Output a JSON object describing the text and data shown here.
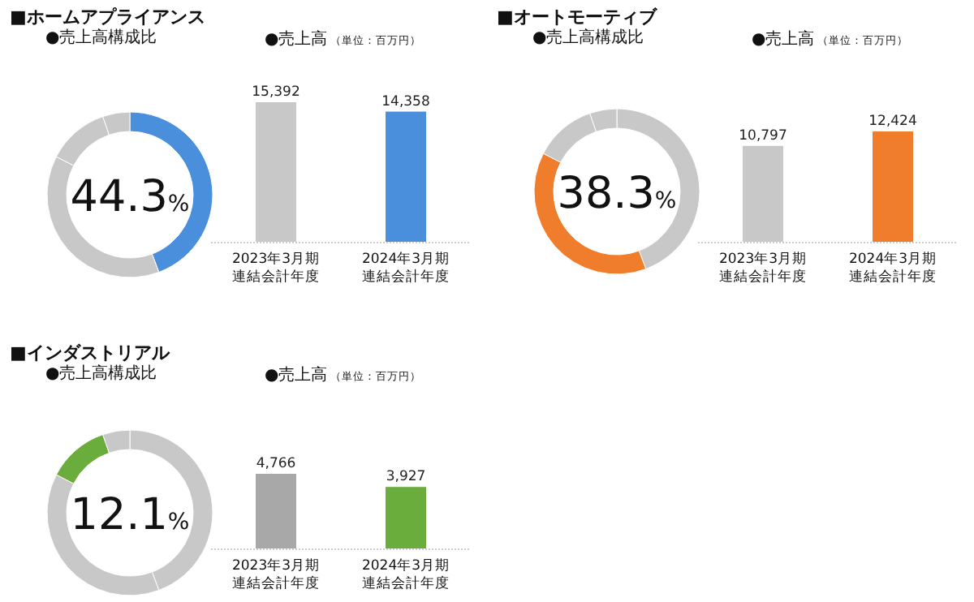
{
  "chart_data": [
    {
      "type": "donut",
      "title": "■ホームアプライアンス",
      "subtitle": "●売上高構成比",
      "categories": [
        null,
        null,
        null,
        null
      ],
      "values": [
        44.3,
        38.3,
        12.1,
        5.3
      ],
      "colors": [
        "#4a8fdc",
        "#c8c8c8",
        "#c8c8c8",
        "#c8c8c8"
      ],
      "annotations": [
        "44.3%"
      ]
    },
    {
      "type": "bar",
      "title": "●売上高",
      "subtitle": "（単位：百万円）",
      "categories": [
        "2023年3月期連結会計年度",
        "2024年3月期連結会計年度"
      ],
      "values": [
        15392,
        14358
      ],
      "colors": [
        "#c8c8c8",
        "#4a8fdc"
      ],
      "value_labels": [
        "15,392",
        "14,358"
      ]
    },
    {
      "type": "donut",
      "title": "■オートモーティブ",
      "subtitle": "●売上高構成比",
      "categories": [
        null,
        null,
        null,
        null
      ],
      "values": [
        44.3,
        38.3,
        12.1,
        5.3
      ],
      "colors": [
        "#c8c8c8",
        "#f07d2c",
        "#c8c8c8",
        "#c8c8c8"
      ],
      "annotations": [
        "38.3%"
      ]
    },
    {
      "type": "bar",
      "title": "●売上高",
      "subtitle": "（単位：百万円）",
      "categories": [
        "2023年3月期連結会計年度",
        "2024年3月期連結会計年度"
      ],
      "values": [
        10797,
        12424
      ],
      "colors": [
        "#c8c8c8",
        "#f07d2c"
      ],
      "value_labels": [
        "10,797",
        "12,424"
      ]
    },
    {
      "type": "donut",
      "title": "■インダストリアル",
      "subtitle": "●売上高構成比",
      "categories": [
        null,
        null,
        null,
        null
      ],
      "values": [
        44.3,
        38.3,
        12.1,
        5.3
      ],
      "colors": [
        "#c8c8c8",
        "#c8c8c8",
        "#6aad3c",
        "#c8c8c8"
      ],
      "annotations": [
        "12.1%"
      ]
    },
    {
      "type": "bar",
      "title": "●売上高",
      "subtitle": "（単位：百万円）",
      "categories": [
        "2023年3月期連結会計年度",
        "2024年3月期連結会計年度"
      ],
      "values": [
        4766,
        3927
      ],
      "colors": [
        "#a8a8a8",
        "#6aad3c"
      ],
      "value_labels": [
        "4,766",
        "3,927"
      ]
    }
  ]
}
